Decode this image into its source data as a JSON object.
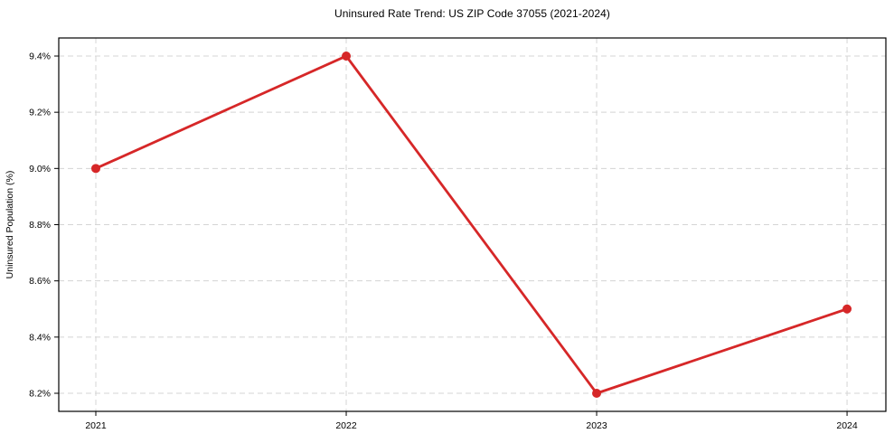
{
  "figure": {
    "background_color": "#ffffff"
  },
  "chart_data": {
    "type": "line",
    "title": "Uninsured Rate Trend: US ZIP Code 37055 (2021-2024)",
    "xlabel": "",
    "ylabel": "Uninsured Population (%)",
    "x": [
      2021,
      2022,
      2023,
      2024
    ],
    "values": [
      9.0,
      9.4,
      8.2,
      8.5
    ],
    "x_tick_labels": [
      "2021",
      "2022",
      "2023",
      "2024"
    ],
    "x_ticks": [
      2021,
      2022,
      2023,
      2024
    ],
    "y_ticks": [
      8.2,
      8.4,
      8.6,
      8.8,
      9.0,
      9.2,
      9.4
    ],
    "y_tick_labels": [
      "8.2%",
      "8.4%",
      "8.6%",
      "8.8%",
      "9.0%",
      "9.2%",
      "9.4%"
    ],
    "xlim": [
      2020.852,
      2024.155
    ],
    "ylim": [
      8.1357,
      9.4643
    ],
    "grid": true,
    "grid_style": "dashed",
    "legend": "none",
    "line_color": "#d62728",
    "marker": "circle",
    "marker_color": "#d62728",
    "grid_color": "#d4d4d4",
    "axis_color": "#000000",
    "text_color": "#000000"
  }
}
